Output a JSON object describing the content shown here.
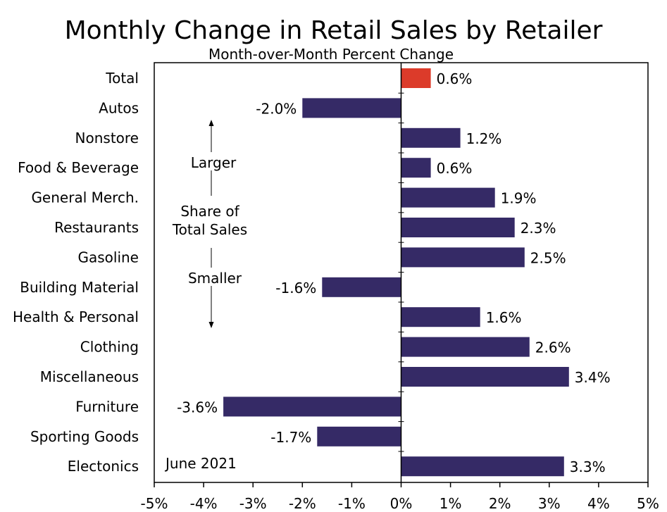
{
  "chart_data": {
    "type": "bar",
    "orientation": "horizontal",
    "title": "Monthly Change in Retail Sales by Retailer",
    "subtitle": "Month-over-Month Percent Change",
    "categories": [
      "Total",
      "Autos",
      "Nonstore",
      "Food & Beverage",
      "General Merch.",
      "Restaurants",
      "Gasoline",
      "Building Material",
      "Health & Personal",
      "Clothing",
      "Miscellaneous",
      "Furniture",
      "Sporting Goods",
      "Electonics"
    ],
    "values": [
      0.6,
      -2.0,
      1.2,
      0.6,
      1.9,
      2.3,
      2.5,
      -1.6,
      1.6,
      2.6,
      3.4,
      -3.6,
      -1.7,
      3.3
    ],
    "value_labels": [
      "0.6%",
      "-2.0%",
      "1.2%",
      "0.6%",
      "1.9%",
      "2.3%",
      "2.5%",
      "-1.6%",
      "1.6%",
      "2.6%",
      "3.4%",
      "-3.6%",
      "-1.7%",
      "3.3%"
    ],
    "highlight_category": "Total",
    "xlim": [
      -5,
      5
    ],
    "x_ticks": [
      -5,
      -4,
      -3,
      -2,
      -1,
      0,
      1,
      2,
      3,
      4,
      5
    ],
    "x_tick_labels": [
      "-5%",
      "-4%",
      "-3%",
      "-2%",
      "-1%",
      "0%",
      "1%",
      "2%",
      "3%",
      "4%",
      "5%"
    ],
    "xlabel": "",
    "ylabel": "",
    "grid": false,
    "colors": {
      "bar": "#352a66",
      "highlight": "#dc3b2a",
      "axis": "#000000"
    },
    "annotations": {
      "larger": "Larger",
      "share_line1": "Share of",
      "share_line2": "Total Sales",
      "smaller": "Smaller",
      "date": "June 2021"
    }
  }
}
